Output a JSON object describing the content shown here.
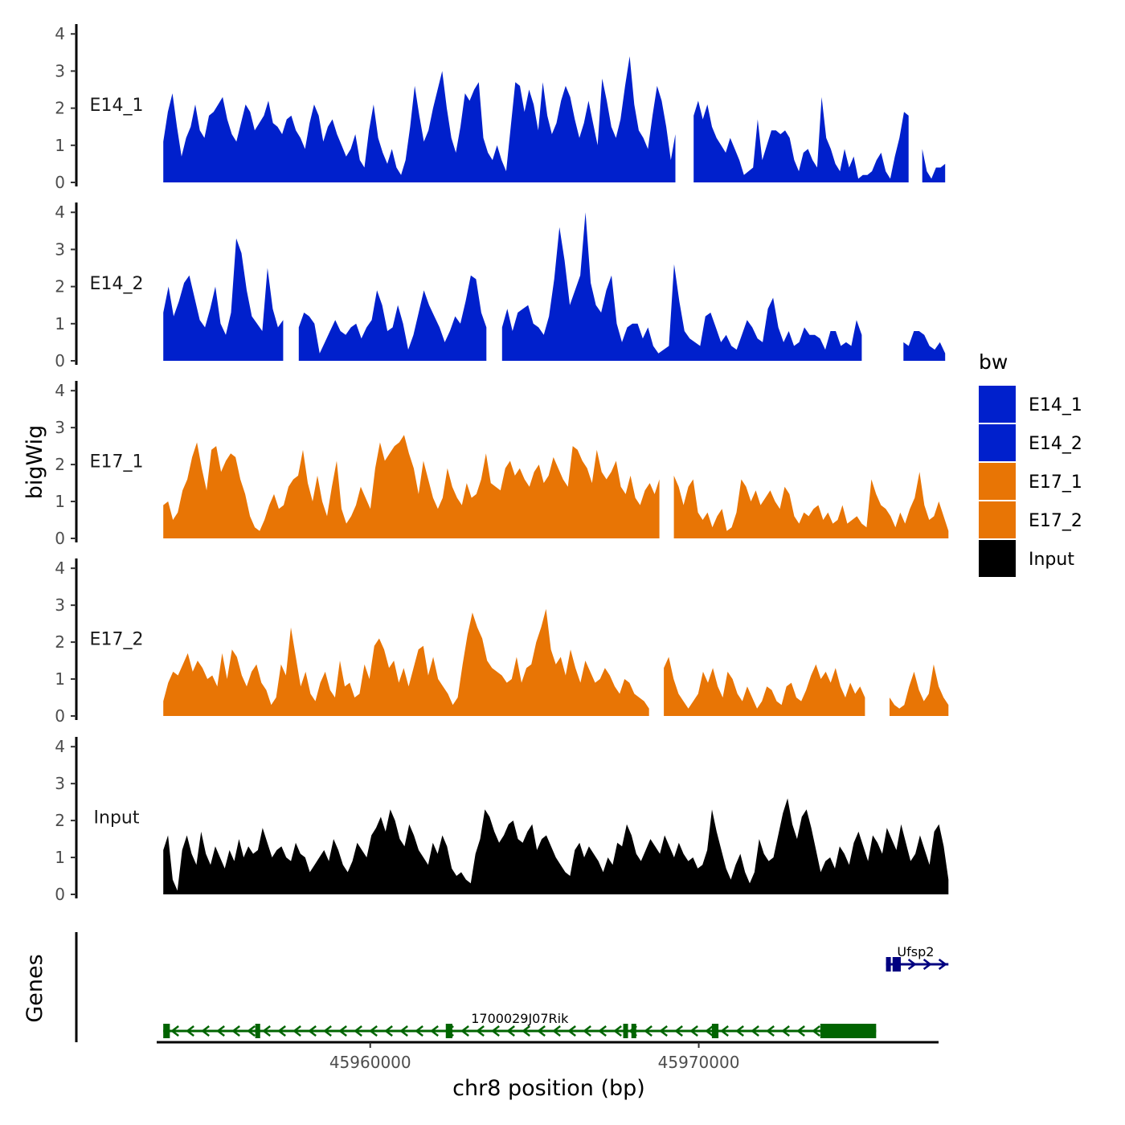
{
  "chart_data": {
    "type": "area",
    "chrom": "chr8",
    "region": [
      45953500,
      45977300
    ],
    "ylabel": "bigWig",
    "xlabel": "chr8 position (bp)",
    "ylim": [
      0,
      4.2
    ],
    "yticks": [
      "0",
      "1",
      "2",
      "3",
      "4"
    ],
    "xticks": [
      {
        "value": 45960000,
        "label": "45960000"
      },
      {
        "value": 45970000,
        "label": "45970000"
      }
    ],
    "legend": {
      "title": "bw",
      "position": "right",
      "items": [
        {
          "label": "E14_1",
          "color": "#0020CC"
        },
        {
          "label": "E14_2",
          "color": "#0020CC"
        },
        {
          "label": "E17_1",
          "color": "#E87505"
        },
        {
          "label": "E17_2",
          "color": "#E87505"
        },
        {
          "label": "Input",
          "color": "#000000"
        }
      ]
    },
    "tracks": [
      {
        "name": "E14_1",
        "color": "#0020CC",
        "start": 45953700,
        "end": 45977500,
        "values": [
          1.1,
          1.9,
          2.4,
          1.5,
          0.7,
          1.2,
          1.5,
          2.1,
          1.4,
          1.2,
          1.8,
          1.9,
          2.1,
          2.3,
          1.7,
          1.3,
          1.1,
          1.6,
          2.1,
          1.9,
          1.4,
          1.6,
          1.8,
          2.2,
          1.6,
          1.5,
          1.3,
          1.7,
          1.8,
          1.4,
          1.2,
          0.9,
          1.6,
          2.1,
          1.8,
          1.1,
          1.5,
          1.7,
          1.3,
          1.0,
          0.7,
          0.9,
          1.3,
          0.6,
          0.4,
          1.4,
          2.1,
          1.2,
          0.8,
          0.5,
          0.9,
          0.4,
          0.2,
          0.6,
          1.5,
          2.6,
          1.8,
          1.1,
          1.4,
          2.0,
          2.5,
          3.0,
          2.0,
          1.2,
          0.8,
          1.5,
          2.4,
          2.2,
          2.5,
          2.7,
          1.2,
          0.8,
          0.6,
          1.0,
          0.6,
          0.3,
          1.5,
          2.7,
          2.6,
          1.9,
          2.5,
          2.1,
          1.4,
          2.7,
          1.8,
          1.3,
          1.6,
          2.2,
          2.6,
          2.3,
          1.7,
          1.2,
          1.6,
          2.2,
          1.6,
          1.0,
          2.8,
          2.2,
          1.5,
          1.2,
          1.7,
          2.6,
          3.4,
          2.1,
          1.4,
          1.2,
          0.9,
          1.8,
          2.6,
          2.2,
          1.5,
          0.6,
          1.3,
          2.0,
          2.1,
          1.1,
          1.8,
          2.2,
          1.7,
          2.1,
          1.5,
          1.2,
          1.0,
          0.8,
          1.2,
          0.9,
          0.6,
          0.2,
          0.3,
          0.4,
          1.7,
          0.6,
          1.0,
          1.4,
          1.4,
          1.3,
          1.4,
          1.2,
          0.6,
          0.3,
          0.8,
          0.9,
          0.6,
          0.4,
          2.3,
          1.2,
          0.9,
          0.5,
          0.3,
          0.9,
          0.4,
          0.7,
          0.1,
          0.2,
          0.2,
          0.3,
          0.6,
          0.8,
          0.3,
          0.1,
          0.7,
          1.2,
          1.9,
          1.8,
          1.6,
          1.7,
          0.9,
          0.3,
          0.1,
          0.4,
          0.4,
          0.5
        ],
        "gaps": [
          [
            45969400,
            45969800
          ],
          [
            45976400,
            45976800
          ]
        ]
      },
      {
        "name": "E14_2",
        "color": "#0020CC",
        "start": 45953700,
        "end": 45977500,
        "values": [
          1.3,
          2.0,
          1.2,
          1.6,
          2.1,
          2.3,
          1.7,
          1.1,
          0.9,
          1.4,
          2.0,
          1.0,
          0.7,
          1.3,
          3.3,
          2.9,
          1.9,
          1.2,
          1.0,
          0.8,
          2.5,
          1.4,
          0.9,
          1.1,
          1.8,
          0.6,
          0.9,
          1.3,
          1.2,
          1.0,
          0.2,
          0.5,
          0.8,
          1.1,
          0.8,
          0.7,
          0.9,
          1.0,
          0.6,
          0.9,
          1.1,
          1.9,
          1.5,
          0.8,
          0.9,
          1.5,
          1.0,
          0.3,
          0.7,
          1.3,
          1.9,
          1.5,
          1.2,
          0.9,
          0.5,
          0.8,
          1.2,
          1.0,
          1.6,
          2.3,
          2.2,
          1.3,
          0.9,
          1.5,
          1.8,
          0.9,
          1.4,
          0.8,
          1.3,
          1.4,
          1.5,
          1.0,
          0.9,
          0.7,
          1.2,
          2.2,
          3.6,
          2.7,
          1.5,
          1.9,
          2.3,
          4.0,
          2.1,
          1.5,
          1.3,
          1.9,
          2.3,
          1.0,
          0.5,
          0.9,
          1.0,
          1.0,
          0.6,
          0.9,
          0.4,
          0.2,
          0.3,
          0.4,
          2.6,
          1.6,
          0.8,
          0.6,
          0.5,
          0.4,
          1.2,
          1.3,
          0.9,
          0.5,
          0.7,
          0.4,
          0.3,
          0.7,
          1.1,
          0.9,
          0.6,
          0.5,
          1.4,
          1.7,
          0.9,
          0.5,
          0.8,
          0.4,
          0.5,
          0.9,
          0.7,
          0.7,
          0.6,
          0.3,
          0.8,
          0.8,
          0.4,
          0.5,
          0.4,
          1.1,
          0.7,
          0.4,
          0.2,
          0.5,
          0.4,
          0.5,
          1.1,
          0.7,
          0.5,
          0.4,
          0.8,
          0.8,
          0.7,
          0.4,
          0.3,
          0.5,
          0.2
        ],
        "gaps": [
          [
            45957500,
            45957700
          ],
          [
            45963600,
            45964000
          ],
          [
            45975100,
            45976100
          ]
        ]
      },
      {
        "name": "E17_1",
        "color": "#E87505",
        "start": 45953700,
        "end": 45977600,
        "values": [
          0.9,
          1.0,
          0.5,
          0.7,
          1.3,
          1.6,
          2.2,
          2.6,
          1.9,
          1.3,
          2.4,
          2.5,
          1.8,
          2.1,
          2.3,
          2.2,
          1.6,
          1.2,
          0.6,
          0.3,
          0.2,
          0.5,
          0.9,
          1.2,
          0.8,
          0.9,
          1.4,
          1.6,
          1.7,
          2.4,
          1.5,
          1.0,
          1.7,
          1.0,
          0.6,
          1.4,
          2.1,
          0.8,
          0.4,
          0.6,
          0.9,
          1.4,
          1.1,
          0.8,
          1.9,
          2.6,
          2.1,
          2.3,
          2.5,
          2.6,
          2.8,
          2.3,
          1.9,
          1.2,
          2.1,
          1.6,
          1.1,
          0.8,
          1.1,
          1.9,
          1.4,
          1.1,
          0.9,
          1.5,
          1.1,
          1.2,
          1.6,
          2.3,
          1.5,
          1.4,
          1.3,
          1.9,
          2.1,
          1.7,
          1.9,
          1.6,
          1.4,
          1.8,
          2.0,
          1.5,
          1.7,
          2.2,
          1.9,
          1.6,
          1.4,
          2.5,
          2.4,
          2.1,
          1.9,
          1.5,
          2.4,
          1.8,
          1.6,
          1.8,
          2.1,
          1.4,
          1.2,
          1.7,
          1.1,
          0.9,
          1.3,
          1.5,
          1.2,
          1.6,
          1.1,
          1.0,
          1.7,
          1.4,
          0.9,
          1.4,
          1.6,
          0.7,
          0.5,
          0.7,
          0.3,
          0.6,
          0.8,
          0.2,
          0.3,
          0.7,
          1.6,
          1.4,
          1.0,
          1.3,
          0.9,
          1.1,
          1.3,
          1.0,
          0.8,
          1.4,
          1.2,
          0.6,
          0.4,
          0.7,
          0.6,
          0.8,
          0.9,
          0.5,
          0.7,
          0.4,
          0.5,
          0.9,
          0.4,
          0.5,
          0.6,
          0.4,
          0.3,
          1.6,
          1.2,
          0.9,
          0.8,
          0.6,
          0.3,
          0.7,
          0.4,
          0.8,
          1.1,
          1.8,
          0.9,
          0.5,
          0.6,
          1.0,
          0.6,
          0.2
        ],
        "gaps": [
          [
            45968900,
            45969200
          ]
        ]
      },
      {
        "name": "E17_2",
        "color": "#E87505",
        "start": 45953700,
        "end": 45977600,
        "values": [
          0.4,
          0.9,
          1.2,
          1.1,
          1.4,
          1.7,
          1.2,
          1.5,
          1.3,
          1.0,
          1.1,
          0.8,
          1.7,
          1.0,
          1.8,
          1.6,
          1.1,
          0.8,
          1.2,
          1.4,
          0.9,
          0.7,
          0.3,
          0.5,
          1.4,
          1.1,
          2.4,
          1.6,
          0.8,
          1.2,
          0.6,
          0.4,
          0.9,
          1.2,
          0.7,
          0.5,
          1.5,
          0.8,
          0.9,
          0.5,
          0.6,
          1.4,
          1.0,
          1.9,
          2.1,
          1.8,
          1.3,
          1.5,
          0.9,
          1.3,
          0.8,
          1.3,
          1.8,
          1.9,
          1.1,
          1.6,
          1.0,
          0.8,
          0.6,
          0.3,
          0.5,
          1.4,
          2.2,
          2.8,
          2.4,
          2.1,
          1.5,
          1.3,
          1.2,
          1.1,
          0.9,
          1.0,
          1.6,
          0.9,
          1.3,
          1.4,
          2.0,
          2.4,
          2.9,
          1.8,
          1.4,
          1.6,
          1.1,
          1.8,
          1.3,
          0.9,
          1.5,
          1.2,
          0.9,
          1.0,
          1.3,
          1.1,
          0.8,
          0.6,
          1.0,
          0.9,
          0.6,
          0.5,
          0.4,
          0.2,
          0.6,
          0.9,
          1.3,
          1.6,
          1.0,
          0.6,
          0.4,
          0.2,
          0.4,
          0.6,
          1.2,
          0.9,
          1.3,
          0.8,
          0.5,
          1.2,
          1.0,
          0.6,
          0.4,
          0.8,
          0.5,
          0.2,
          0.4,
          0.8,
          0.7,
          0.4,
          0.3,
          0.8,
          0.9,
          0.5,
          0.4,
          0.7,
          1.1,
          1.4,
          1.0,
          1.2,
          0.9,
          1.3,
          0.8,
          0.5,
          0.9,
          0.6,
          0.8,
          0.5,
          0.4,
          1.0,
          0.7,
          0.8,
          0.5,
          0.3,
          0.2,
          0.3,
          0.8,
          1.2,
          0.7,
          0.4,
          0.6,
          1.4,
          0.8,
          0.5,
          0.3
        ],
        "gaps": [
          [
            45968500,
            45968800
          ],
          [
            45975200,
            45975800
          ]
        ]
      },
      {
        "name": "Input",
        "color": "#000000",
        "start": 45953700,
        "end": 45977600,
        "values": [
          1.2,
          1.6,
          0.4,
          0.1,
          1.2,
          1.6,
          1.1,
          0.8,
          1.7,
          1.1,
          0.8,
          1.3,
          1.0,
          0.7,
          1.2,
          0.9,
          1.5,
          1.0,
          1.3,
          1.1,
          1.2,
          1.8,
          1.4,
          1.0,
          1.2,
          1.3,
          1.0,
          0.9,
          1.4,
          1.1,
          1.0,
          0.6,
          0.8,
          1.0,
          1.2,
          0.9,
          1.5,
          1.2,
          0.8,
          0.6,
          0.9,
          1.4,
          1.2,
          1.0,
          1.6,
          1.8,
          2.1,
          1.7,
          2.3,
          2.0,
          1.5,
          1.3,
          1.9,
          1.6,
          1.2,
          1.0,
          0.8,
          1.4,
          1.1,
          1.6,
          1.3,
          0.7,
          0.5,
          0.6,
          0.4,
          0.3,
          1.1,
          1.5,
          2.3,
          2.1,
          1.7,
          1.4,
          1.6,
          1.9,
          2.0,
          1.5,
          1.4,
          1.7,
          1.9,
          1.2,
          1.5,
          1.6,
          1.3,
          1.0,
          0.8,
          0.6,
          0.5,
          1.2,
          1.4,
          1.0,
          1.3,
          1.1,
          0.9,
          0.6,
          1.0,
          0.8,
          1.4,
          1.3,
          1.9,
          1.6,
          1.1,
          0.9,
          1.2,
          1.5,
          1.3,
          1.1,
          1.6,
          1.3,
          1.0,
          1.4,
          1.1,
          0.9,
          1.0,
          0.7,
          0.8,
          1.2,
          2.3,
          1.7,
          1.2,
          0.7,
          0.4,
          0.8,
          1.1,
          0.6,
          0.3,
          0.6,
          1.5,
          1.1,
          0.9,
          1.0,
          1.6,
          2.2,
          2.6,
          1.9,
          1.5,
          2.1,
          2.3,
          1.8,
          1.2,
          0.6,
          0.9,
          1.0,
          0.7,
          1.3,
          1.1,
          0.8,
          1.4,
          1.7,
          1.3,
          0.9,
          1.6,
          1.4,
          1.1,
          1.8,
          1.5,
          1.2,
          1.9,
          1.4,
          0.9,
          1.1,
          1.6,
          1.2,
          0.8,
          1.7,
          1.9,
          1.3,
          0.4
        ],
        "gaps": []
      }
    ],
    "genes": [
      {
        "name": "1700029J07Rik",
        "color": "#006400",
        "start": 45953700,
        "end": 45975400,
        "strand": "-",
        "exons": [
          [
            45953700,
            45953900
          ],
          [
            45956500,
            45956650
          ],
          [
            45962300,
            45962500
          ],
          [
            45967700,
            45967800
          ],
          [
            45967950,
            45968050
          ],
          [
            45970400,
            45970600
          ],
          [
            45973700,
            45975400
          ]
        ]
      },
      {
        "name": "Ufsp2",
        "color": "#000080",
        "start": 45975700,
        "end": 45977600,
        "strand": "+",
        "exons": [
          [
            45975700,
            45975800
          ],
          [
            45975900,
            45976150
          ]
        ]
      }
    ],
    "gene_track_label": "Genes"
  }
}
